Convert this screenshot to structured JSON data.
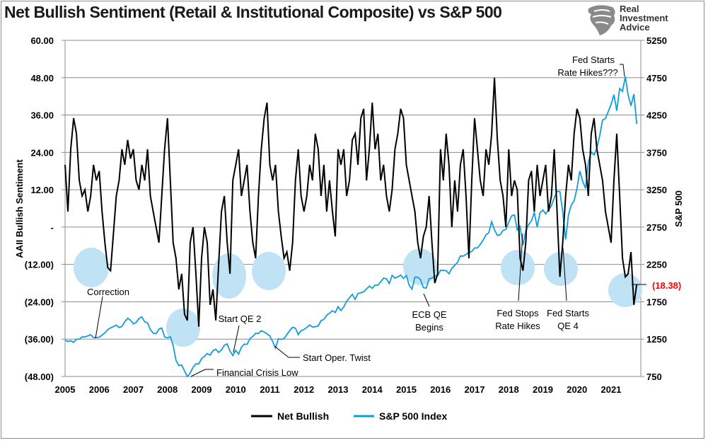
{
  "title": "Net Bullish Sentiment (Retail & Institutional Composite) vs S&P 500",
  "logo": {
    "lines": [
      "Real",
      "Investment",
      "Advice"
    ]
  },
  "chart_data": {
    "type": "line",
    "title": "Net Bullish Sentiment (Retail & Institutional Composite) vs S&P 500",
    "x_tick_labels": [
      "2005",
      "2006",
      "2007",
      "2008",
      "2009",
      "2010",
      "2011",
      "2012",
      "2013",
      "2014",
      "2015",
      "2016",
      "2017",
      "2018",
      "2019",
      "2020",
      "2021"
    ],
    "ylabel_left": "AAII Bullish Sentiment",
    "ylabel_right": "S&P 500",
    "ylim_left": [
      -48,
      60
    ],
    "ylim_right": [
      750,
      5250
    ],
    "y_tick_labels_left": [
      "60.00",
      "48.00",
      "36.00",
      "24.00",
      "12.00",
      "-",
      "(12.00)",
      "(24.00)",
      "(36.00)",
      "(48.00)"
    ],
    "y_tick_labels_right": [
      "5250",
      "4750",
      "4250",
      "3750",
      "3250",
      "2750",
      "2250",
      "1750",
      "1250",
      "750"
    ],
    "grid": true,
    "legend_position": "bottom",
    "series": [
      {
        "name": "Net Bullish",
        "axis": "left",
        "color": "#000000",
        "monthly_values_by_year": {
          "2005": [
            20,
            5,
            25,
            35,
            30,
            15,
            10,
            12,
            5,
            10,
            20,
            15
          ],
          "2006": [
            18,
            5,
            -5,
            -13,
            -14,
            -2,
            10,
            15,
            25,
            20,
            28,
            22
          ],
          "2007": [
            25,
            15,
            12,
            20,
            15,
            25,
            10,
            5,
            0,
            -5,
            10,
            25
          ],
          "2008": [
            35,
            15,
            -5,
            -10,
            -20,
            -15,
            -28,
            -30,
            -5,
            0,
            -15,
            -32
          ],
          "2009": [
            -10,
            0,
            -5,
            -25,
            -20,
            -30,
            -12,
            5,
            10,
            -5,
            -15,
            15
          ],
          "2010": [
            20,
            25,
            10,
            15,
            20,
            5,
            -5,
            -10,
            10,
            25,
            35,
            40
          ],
          "2011": [
            20,
            15,
            20,
            5,
            -3,
            -10,
            -8,
            -14,
            -5,
            15,
            25,
            10
          ],
          "2012": [
            5,
            10,
            20,
            15,
            30,
            25,
            10,
            20,
            5,
            15,
            5,
            -3
          ],
          "2013": [
            25,
            20,
            25,
            10,
            15,
            28,
            30,
            20,
            35,
            38,
            15,
            25
          ],
          "2014": [
            40,
            25,
            30,
            15,
            20,
            10,
            5,
            12,
            25,
            30,
            38,
            35
          ],
          "2015": [
            20,
            15,
            10,
            5,
            -5,
            -10,
            -3,
            0,
            10,
            -5,
            -18,
            -15
          ],
          "2016": [
            25,
            15,
            30,
            20,
            0,
            15,
            5,
            20,
            25,
            10,
            -10,
            15
          ],
          "2017": [
            35,
            25,
            15,
            10,
            25,
            20,
            30,
            48,
            28,
            15,
            10,
            0
          ],
          "2018": [
            25,
            10,
            15,
            12,
            -10,
            -14,
            -5,
            15,
            18,
            5,
            20,
            10
          ],
          "2019": [
            15,
            20,
            5,
            10,
            25,
            5,
            -16,
            -5,
            10,
            20,
            15,
            30
          ],
          "2020": [
            38,
            35,
            25,
            20,
            10,
            30,
            35,
            25,
            20,
            15,
            5,
            0
          ],
          "2021": [
            -5,
            15,
            30,
            10,
            -10,
            -16,
            -15,
            -8,
            -25,
            -18.38
          ]
        }
      },
      {
        "name": "S&P 500 Index",
        "axis": "right",
        "color": "#0f9ddb",
        "monthly_values_by_year": {
          "2005": [
            1234,
            1220,
            1228,
            1207,
            1249,
            1248,
            1280,
            1280,
            1294,
            1310,
            1270,
            1270
          ],
          "2006": [
            1276,
            1303,
            1335,
            1377,
            1400,
            1418,
            1438,
            1406,
            1420,
            1482,
            1530,
            1503
          ],
          "2007": [
            1455,
            1473,
            1526,
            1549,
            1481,
            1468,
            1378,
            1330,
            1322,
            1385,
            1400,
            1280
          ],
          "2008": [
            1267,
            1282,
            1166,
            968,
            896,
            903,
            825,
            735,
            797,
            872,
            919,
            919
          ],
          "2009": [
            987,
            1020,
            1057,
            1036,
            1095,
            1115,
            1073,
            1104,
            1169,
            1186,
            1089,
            1030
          ],
          "2010": [
            1101,
            1049,
            1141,
            1183,
            1180,
            1257,
            1286,
            1327,
            1325,
            1363,
            1345,
            1320
          ],
          "2011": [
            1292,
            1218,
            1131,
            1253,
            1246,
            1257,
            1312,
            1365,
            1408,
            1397,
            1310,
            1362
          ],
          "2012": [
            1379,
            1406,
            1440,
            1412,
            1416,
            1426,
            1498,
            1514,
            1569,
            1597,
            1630,
            1606
          ],
          "2013": [
            1685,
            1632,
            1681,
            1756,
            1805,
            1848,
            1782,
            1859,
            1872,
            1883,
            1923,
            1960
          ],
          "2014": [
            1930,
            1972,
            1972,
            2018,
            2067,
            2058,
            1994,
            2104,
            2067,
            2085,
            2107,
            2063
          ],
          "2015": [
            2103,
            1972,
            1920,
            2079,
            2080,
            2043,
            1940,
            1932,
            2059,
            2065,
            2096,
            2098
          ],
          "2016": [
            2173,
            2170,
            2168,
            2126,
            2198,
            2238,
            2278,
            2363,
            2362,
            2384,
            2411,
            2423
          ],
          "2017": [
            2470,
            2471,
            2519,
            2575,
            2647,
            2673,
            2823,
            2713,
            2640,
            2648,
            2705,
            2718
          ],
          "2018": [
            2816,
            2901,
            2913,
            2711,
            2760,
            2506,
            2704,
            2784,
            2834,
            2945,
            2752,
            2941
          ],
          "2019": [
            2980,
            2926,
            2976,
            3037,
            3140,
            3230,
            3225,
            2954,
            2584,
            2912,
            3044,
            3100
          ],
          "2020": [
            3271,
            3500,
            3363,
            3269,
            3621,
            3756,
            3714,
            3811,
            3972,
            4181,
            4204,
            4297
          ],
          "2021": [
            4395,
            4522,
            4307,
            4605,
            4567,
            4766,
            4516,
            4374,
            4530,
            4131
          ]
        }
      }
    ],
    "annotations": {
      "correction": "Correction",
      "qe2": "Start QE 2",
      "twist": "Start Oper. Twist",
      "crisis": "Financial Crisis Low",
      "ecb_1": "ECB QE",
      "ecb_2": "Begins",
      "fedstops_1": "Fed Stops",
      "fedstops_2": "Rate Hikes",
      "qe4_1": "Fed Starts",
      "qe4_2": "QE 4",
      "hikes_1": "Fed Starts",
      "hikes_2": "Rate Hikes???",
      "last_value": "(18.38)"
    },
    "highlight_color": "#bfe3f5",
    "last_value_color": "#ff0000"
  }
}
